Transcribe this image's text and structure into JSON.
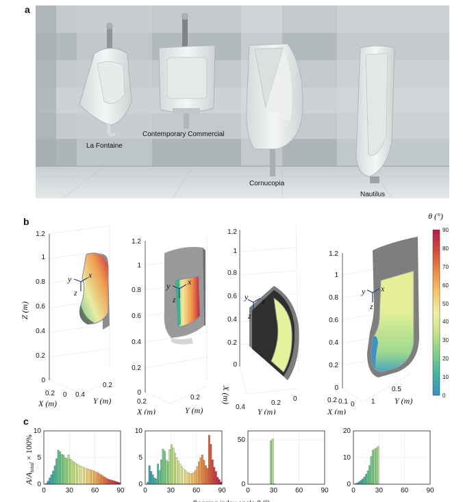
{
  "panels": {
    "a": "a",
    "b": "b",
    "c": "c"
  },
  "photo": {
    "labels": [
      "La Fontaine",
      "Contemporary Commercial",
      "Cornucopia",
      "Nautilus"
    ]
  },
  "plots3d": [
    {
      "z_ticks": [
        "0",
        "0.2",
        "0.4",
        "0.6",
        "0.8",
        "1",
        "1.2"
      ],
      "x_label": "X (m)",
      "y_label": "Y (m)",
      "z_label": "Z (m)",
      "x_ticks": [
        "0.2",
        "0",
        "0.4"
      ],
      "y_ticks": [
        "0.2"
      ]
    },
    {
      "z_ticks": [
        "0",
        "0.2",
        "0.4",
        "0.6",
        "0.8",
        "1",
        "1.2"
      ],
      "x_label": "X (m)",
      "y_label": "Y (m)",
      "x_ticks": [
        "0.2",
        "0.2"
      ]
    },
    {
      "z_ticks": [
        "0",
        "0.2",
        "0.4",
        "0.6",
        "0.8",
        "1",
        "1.2"
      ],
      "x_label": "X (m)",
      "y_label": "Y (m)",
      "x_ticks": [
        "0.4",
        "0.2",
        "0"
      ]
    },
    {
      "z_ticks": [
        "0",
        "0.2",
        "0.4",
        "0.6",
        "0.8",
        "1",
        "1.2"
      ],
      "x_label": "X (m)",
      "y_label": "Y (m)",
      "x_ticks": [
        "0.2",
        "0.1",
        "0",
        "0.5",
        "1"
      ]
    }
  ],
  "axes_triad": {
    "x": "x",
    "y": "y",
    "z": "z"
  },
  "colorbar": {
    "title": "θ (°)",
    "ticks": [
      "0",
      "10",
      "20",
      "30",
      "40",
      "50",
      "60",
      "70",
      "80",
      "90"
    ],
    "colors": [
      "#3b8fc4",
      "#3fb3a0",
      "#7fcf86",
      "#c8e58a",
      "#f2f0a6",
      "#f5c86d",
      "#eb8a44",
      "#d4483a",
      "#b3194d"
    ]
  },
  "chart_data": [
    {
      "type": "bar",
      "ylabel": "A/A_total × 100%",
      "xlim": [
        0,
        90
      ],
      "ylim": [
        0,
        10
      ],
      "x_ticks": [
        "0",
        "30",
        "60",
        "90"
      ],
      "y_ticks": [
        "0",
        "5",
        "10"
      ],
      "x": [
        3,
        5,
        7,
        9,
        11,
        13,
        15,
        17,
        19,
        21,
        23,
        25,
        27,
        29,
        31,
        33,
        35,
        37,
        39,
        41,
        43,
        45,
        47,
        49,
        51,
        53,
        55,
        57,
        59,
        61,
        63,
        65,
        67,
        69,
        71,
        73,
        75,
        77,
        79,
        81,
        83,
        85,
        87,
        89
      ],
      "values": [
        0.2,
        0.6,
        1.2,
        1.8,
        2.5,
        3.5,
        4.8,
        6.4,
        6.1,
        5.6,
        5.5,
        5.0,
        4.8,
        5.5,
        4.7,
        4.5,
        4.2,
        4.0,
        3.8,
        3.6,
        3.4,
        3.3,
        3.1,
        3.0,
        2.9,
        2.8,
        2.7,
        2.6,
        2.5,
        2.3,
        2.2,
        2.0,
        1.8,
        1.6,
        1.4,
        1.2,
        1.0,
        0.9,
        0.8,
        0.7,
        0.6,
        0.5,
        0.4,
        0.3
      ]
    },
    {
      "type": "bar",
      "xlim": [
        0,
        90
      ],
      "ylim": [
        0,
        10
      ],
      "x_ticks": [
        "0",
        "30",
        "60",
        "90"
      ],
      "y_ticks": [
        "0",
        "5",
        "10"
      ],
      "x": [
        3,
        5,
        7,
        9,
        11,
        13,
        15,
        17,
        19,
        21,
        23,
        25,
        27,
        29,
        31,
        33,
        35,
        37,
        39,
        41,
        43,
        45,
        47,
        49,
        51,
        53,
        55,
        57,
        59,
        61,
        63,
        65,
        67,
        69,
        71,
        73,
        75,
        77,
        79,
        81,
        83,
        85,
        87,
        89
      ],
      "values": [
        0.4,
        3.5,
        2.4,
        1.8,
        1.2,
        1.0,
        3.8,
        2.6,
        4.6,
        6.6,
        6.2,
        4.5,
        4.2,
        6.5,
        7.4,
        6.8,
        5.8,
        5.0,
        4.3,
        3.8,
        3.3,
        2.9,
        2.6,
        2.3,
        2.1,
        2.0,
        2.0,
        2.2,
        2.6,
        3.3,
        4.2,
        5.0,
        5.5,
        4.5,
        3.5,
        3.0,
        9.2,
        7.5,
        4.6,
        3.2,
        2.4,
        1.3,
        0.9,
        0.4
      ]
    },
    {
      "type": "bar",
      "xlim": [
        0,
        90
      ],
      "ylim": [
        0,
        60
      ],
      "x_ticks": [
        "0",
        "30",
        "60",
        "90"
      ],
      "y_ticks": [
        "0",
        "50"
      ],
      "x": [
        27,
        29,
        31
      ],
      "values": [
        49,
        51,
        0.5
      ]
    },
    {
      "type": "bar",
      "xlim": [
        0,
        90
      ],
      "ylim": [
        0,
        20
      ],
      "x_ticks": [
        "0",
        "30",
        "60",
        "90"
      ],
      "y_ticks": [
        "0",
        "10",
        "20"
      ],
      "x": [
        3,
        5,
        7,
        9,
        11,
        13,
        15,
        17,
        19,
        21,
        23,
        25,
        27,
        29
      ],
      "values": [
        0.3,
        0.6,
        1.0,
        1.5,
        2.0,
        2.8,
        3.8,
        5.0,
        7.0,
        10.5,
        12.8,
        13.2,
        13.6,
        14.2
      ]
    }
  ],
  "histogram_xlabel": "Sagging index angle θ (°)"
}
